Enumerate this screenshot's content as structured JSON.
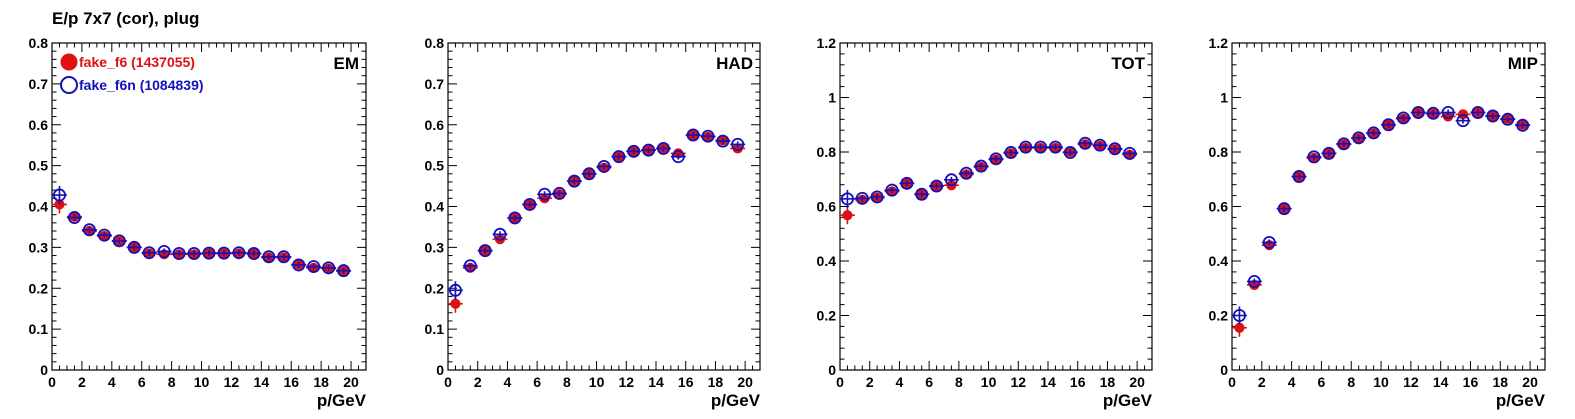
{
  "title": "E/p 7x7 (cor), plug",
  "colors": {
    "series_f6": "#dd1111",
    "series_f6n": "#1111bb",
    "axis": "#000000"
  },
  "legend": [
    {
      "label": "fake_f6 (1437055)",
      "marker": "filled-circle",
      "color": "#dd1111"
    },
    {
      "label": "fake_f6n (1084839)",
      "marker": "open-circle",
      "color": "#1111bb"
    }
  ],
  "chart_data": [
    {
      "type": "scatter",
      "panel_label": "EM",
      "xlabel": "p/GeV",
      "xlim": [
        0,
        21
      ],
      "ylim": [
        0,
        0.8
      ],
      "x_ticks": [
        "0",
        "2",
        "4",
        "6",
        "8",
        "10",
        "12",
        "14",
        "16",
        "18",
        "20"
      ],
      "y_ticks": [
        "0",
        "0.1",
        "0.2",
        "0.3",
        "0.4",
        "0.5",
        "0.6",
        "0.7",
        "0.8"
      ],
      "x": [
        0.5,
        1.5,
        2.5,
        3.5,
        4.5,
        5.5,
        6.5,
        7.5,
        8.5,
        9.5,
        10.5,
        11.5,
        12.5,
        13.5,
        14.5,
        15.5,
        16.5,
        17.5,
        18.5,
        19.5
      ],
      "series": [
        {
          "name": "fake_f6 (1437055)",
          "values": [
            0.405,
            0.375,
            0.34,
            0.328,
            0.315,
            0.3,
            0.285,
            0.283,
            0.283,
            0.283,
            0.285,
            0.285,
            0.285,
            0.285,
            0.275,
            0.275,
            0.258,
            0.25,
            0.248,
            0.242
          ]
        },
        {
          "name": "fake_f6n (1084839)",
          "values": [
            0.428,
            0.373,
            0.343,
            0.33,
            0.316,
            0.3,
            0.287,
            0.29,
            0.285,
            0.285,
            0.286,
            0.286,
            0.287,
            0.285,
            0.277,
            0.277,
            0.257,
            0.253,
            0.25,
            0.243
          ]
        }
      ]
    },
    {
      "type": "scatter",
      "panel_label": "HAD",
      "xlabel": "p/GeV",
      "xlim": [
        0,
        21
      ],
      "ylim": [
        0,
        0.8
      ],
      "x_ticks": [
        "0",
        "2",
        "4",
        "6",
        "8",
        "10",
        "12",
        "14",
        "16",
        "18",
        "20"
      ],
      "y_ticks": [
        "0",
        "0.1",
        "0.2",
        "0.3",
        "0.4",
        "0.5",
        "0.6",
        "0.7",
        "0.8"
      ],
      "x": [
        0.5,
        1.5,
        2.5,
        3.5,
        4.5,
        5.5,
        6.5,
        7.5,
        8.5,
        9.5,
        10.5,
        11.5,
        12.5,
        13.5,
        14.5,
        15.5,
        16.5,
        17.5,
        18.5,
        19.5
      ],
      "series": [
        {
          "name": "fake_f6 (1437055)",
          "values": [
            0.162,
            0.25,
            0.292,
            0.32,
            0.372,
            0.405,
            0.42,
            0.43,
            0.462,
            0.48,
            0.495,
            0.522,
            0.535,
            0.538,
            0.542,
            0.53,
            0.575,
            0.57,
            0.562,
            0.542
          ]
        },
        {
          "name": "fake_f6n (1084839)",
          "values": [
            0.195,
            0.255,
            0.292,
            0.332,
            0.372,
            0.405,
            0.43,
            0.432,
            0.462,
            0.48,
            0.498,
            0.522,
            0.535,
            0.538,
            0.542,
            0.522,
            0.575,
            0.572,
            0.56,
            0.552
          ]
        }
      ]
    },
    {
      "type": "scatter",
      "panel_label": "TOT",
      "xlabel": "p/GeV",
      "xlim": [
        0,
        21
      ],
      "ylim": [
        0,
        1.2
      ],
      "x_ticks": [
        "0",
        "2",
        "4",
        "6",
        "8",
        "10",
        "12",
        "14",
        "16",
        "18",
        "20"
      ],
      "y_ticks": [
        "0",
        "0.2",
        "0.4",
        "0.6",
        "0.8",
        "1",
        "1.2"
      ],
      "x": [
        0.5,
        1.5,
        2.5,
        3.5,
        4.5,
        5.5,
        6.5,
        7.5,
        8.5,
        9.5,
        10.5,
        11.5,
        12.5,
        13.5,
        14.5,
        15.5,
        16.5,
        17.5,
        18.5,
        19.5
      ],
      "series": [
        {
          "name": "fake_f6 (1437055)",
          "values": [
            0.568,
            0.625,
            0.632,
            0.655,
            0.685,
            0.645,
            0.675,
            0.678,
            0.718,
            0.745,
            0.772,
            0.795,
            0.815,
            0.815,
            0.815,
            0.8,
            0.828,
            0.822,
            0.81,
            0.79
          ]
        },
        {
          "name": "fake_f6n (1084839)",
          "values": [
            0.628,
            0.63,
            0.635,
            0.66,
            0.685,
            0.645,
            0.675,
            0.698,
            0.722,
            0.748,
            0.775,
            0.798,
            0.818,
            0.818,
            0.818,
            0.798,
            0.832,
            0.825,
            0.812,
            0.795
          ]
        }
      ]
    },
    {
      "type": "scatter",
      "panel_label": "MIP",
      "xlabel": "p/GeV",
      "xlim": [
        0,
        21
      ],
      "ylim": [
        0,
        1.2
      ],
      "x_ticks": [
        "0",
        "2",
        "4",
        "6",
        "8",
        "10",
        "12",
        "14",
        "16",
        "18",
        "20"
      ],
      "y_ticks": [
        "0",
        "0.2",
        "0.4",
        "0.6",
        "0.8",
        "1",
        "1.2"
      ],
      "x": [
        0.5,
        1.5,
        2.5,
        3.5,
        4.5,
        5.5,
        6.5,
        7.5,
        8.5,
        9.5,
        10.5,
        11.5,
        12.5,
        13.5,
        14.5,
        15.5,
        16.5,
        17.5,
        18.5,
        19.5
      ],
      "series": [
        {
          "name": "fake_f6 (1437055)",
          "values": [
            0.155,
            0.312,
            0.458,
            0.592,
            0.71,
            0.778,
            0.795,
            0.828,
            0.85,
            0.868,
            0.9,
            0.922,
            0.945,
            0.94,
            0.93,
            0.938,
            0.945,
            0.932,
            0.922,
            0.9
          ]
        },
        {
          "name": "fake_f6n (1084839)",
          "values": [
            0.2,
            0.325,
            0.468,
            0.592,
            0.71,
            0.782,
            0.795,
            0.83,
            0.852,
            0.87,
            0.9,
            0.925,
            0.945,
            0.942,
            0.945,
            0.915,
            0.945,
            0.932,
            0.92,
            0.898
          ]
        }
      ]
    }
  ]
}
